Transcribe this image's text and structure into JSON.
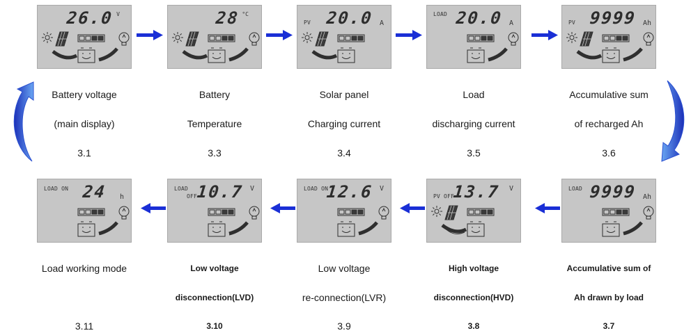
{
  "panels": [
    {
      "tag1": "",
      "tag2": "",
      "value": "26.0",
      "unit": "V"
    },
    {
      "tag1": "",
      "tag2": "",
      "value": "28",
      "unit": "°C"
    },
    {
      "tag1": "PV",
      "tag2": "",
      "value": "20.0",
      "unit": "A"
    },
    {
      "tag1": "LOAD",
      "tag2": "",
      "value": "20.0",
      "unit": "A"
    },
    {
      "tag1": "PV",
      "tag2": "",
      "value": "9999",
      "unit": "Ah"
    },
    {
      "tag1": "LOAD",
      "tag2": "",
      "value": "9999",
      "unit": "Ah"
    },
    {
      "tag1": "PV OFF",
      "tag2": "",
      "value": "13.7",
      "unit": "V"
    },
    {
      "tag1": "LOAD ON",
      "tag2": "",
      "value": "12.6",
      "unit": "V"
    },
    {
      "tag1": "LOAD",
      "tag2": "OFF",
      "value": "10.7",
      "unit": "V"
    },
    {
      "tag1": "LOAD ON",
      "tag2": "",
      "value": "24",
      "unit": "h"
    }
  ],
  "captions": [
    {
      "line1": "Battery voltage",
      "line2": "(main display)",
      "num": "3.1"
    },
    {
      "line1": "Battery",
      "line2": "Temperature",
      "num": "3.3"
    },
    {
      "line1": "Solar panel",
      "line2": "Charging current",
      "num": "3.4"
    },
    {
      "line1": "Load",
      "line2": "discharging current",
      "num": "3.5"
    },
    {
      "line1": "Accumulative sum",
      "line2": "of recharged Ah",
      "num": "3.6"
    },
    {
      "line1": "Accumulative sum of",
      "line2": "Ah drawn by load",
      "num": "3.7"
    },
    {
      "line1": "High voltage",
      "line2": "disconnection(HVD)",
      "num": "3.8"
    },
    {
      "line1": "Low voltage",
      "line2": "re-connection(LVR)",
      "num": "3.9"
    },
    {
      "line1": "Low voltage",
      "line2": "disconnection(LVD)",
      "num": "3.10"
    },
    {
      "line1": "Load working mode",
      "line2": "",
      "num": "3.11"
    }
  ],
  "colors": {
    "arrow": "#1a2fd6",
    "curved_arrow": "#3b7fe8",
    "panel": "#c6c6c6"
  }
}
